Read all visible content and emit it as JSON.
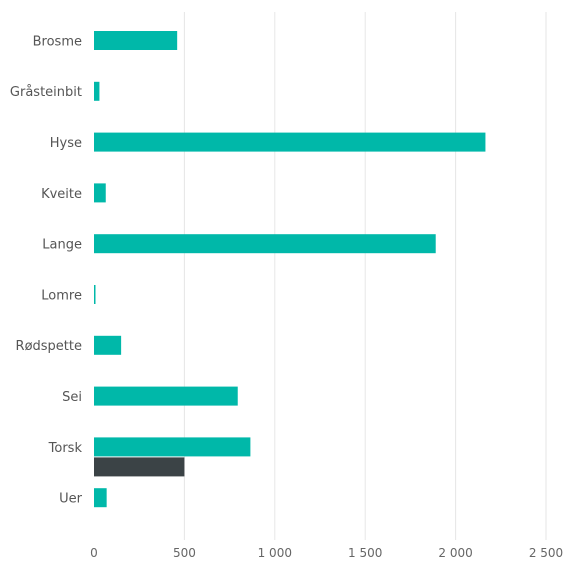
{
  "chart_data": {
    "type": "bar",
    "orientation": "horizontal",
    "categories": [
      "Brosme",
      "Gråsteinbit",
      "Hyse",
      "Kveite",
      "Lange",
      "Lomre",
      "Rødspette",
      "Sei",
      "Torsk",
      "Uer"
    ],
    "series": [
      {
        "values": [
          460,
          30,
          2165,
          65,
          1890,
          8,
          150,
          795,
          865,
          70
        ],
        "color": "#00b8a9"
      },
      {
        "values": [
          0,
          0,
          0,
          0,
          0,
          0,
          0,
          0,
          500,
          0
        ],
        "color": "#3b4346"
      }
    ],
    "xlim": [
      0,
      2500
    ],
    "x_ticks": [
      0,
      500,
      1000,
      1500,
      2000,
      2500
    ],
    "x_tick_labels": [
      "0",
      "500",
      "1 000",
      "1 500",
      "2 000",
      "2 500"
    ],
    "grid": "vertical",
    "title": "",
    "xlabel": "",
    "ylabel": ""
  }
}
